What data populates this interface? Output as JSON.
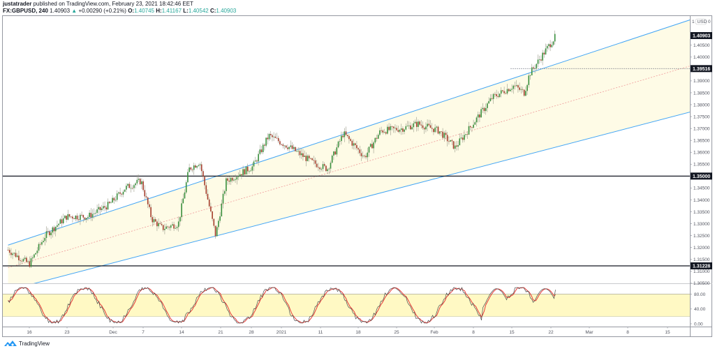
{
  "header": {
    "author": "justatrader",
    "published_text": "published on TradingView.com, February 23, 2021 18:42:46 EET",
    "symbol": "FX:GBPUSD, 240",
    "last": "1.40903",
    "change_icon": "triangle-up-icon",
    "change": "+0.00290 (+0.21%)",
    "ohlc": [
      {
        "label": "O:",
        "value": "1.40745"
      },
      {
        "label": "H:",
        "value": "1.41167"
      },
      {
        "label": "L:",
        "value": "1.40542"
      },
      {
        "label": "C:",
        "value": "1.40903"
      }
    ]
  },
  "price_axis": {
    "currency": "USD",
    "ticks": [
      "1.40500",
      "1.40000",
      "1.39000",
      "1.38500",
      "1.38000",
      "1.37500",
      "1.37000",
      "1.36500",
      "1.36000",
      "1.35500",
      "1.34500",
      "1.34000",
      "1.33500",
      "1.33000",
      "1.32500",
      "1.32000",
      "1.31500",
      "1.31000",
      "1.30500"
    ],
    "labels": [
      {
        "value": "1.40903",
        "kind": "last-price"
      },
      {
        "value": "1.39516",
        "kind": "horizontal-ray"
      },
      {
        "value": "1.35000",
        "kind": "horizontal-line"
      },
      {
        "value": "1.31228",
        "kind": "horizontal-line"
      }
    ]
  },
  "oscillator_axis": {
    "ticks": [
      "80.00",
      "40.00",
      "0.00"
    ]
  },
  "time_axis": {
    "ticks": [
      "16",
      "23",
      "Dec",
      "7",
      "14",
      "21",
      "28",
      "2021",
      "11",
      "18",
      "25",
      "Feb",
      "8",
      "15",
      "22",
      "Mar",
      "8",
      "15"
    ]
  },
  "branding": {
    "logo_icon": "tradingview-logo-icon",
    "name": "TradingView"
  },
  "colors": {
    "up_candle": "#388e3c",
    "down_candle": "#a33b2a",
    "channel_line": "#42a5f5",
    "channel_fill": "#fefbe6",
    "channel_mid": "#ef9a9a",
    "osc_k": "#4a4a4a",
    "osc_d": "#e53935",
    "osc_band": "#fff9c4"
  },
  "chart_data": {
    "type": "candlestick",
    "title": "FX:GBPUSD, 240",
    "xlabel": "",
    "ylabel": "USD",
    "ylim": [
      1.3035,
      1.4165
    ],
    "x_ticks": [
      "16",
      "23",
      "Dec",
      "7",
      "14",
      "21",
      "28",
      "2021",
      "11",
      "18",
      "25",
      "Feb",
      "8",
      "15",
      "22",
      "Mar",
      "8",
      "15"
    ],
    "y_ticks": [
      1.305,
      1.31,
      1.315,
      1.32,
      1.325,
      1.33,
      1.335,
      1.34,
      1.345,
      1.35,
      1.355,
      1.36,
      1.365,
      1.37,
      1.375,
      1.38,
      1.385,
      1.39,
      1.395,
      1.4,
      1.405
    ],
    "approx_close_path": [
      {
        "date": "Nov 12",
        "close": 1.319
      },
      {
        "date": "Nov 16",
        "close": 1.313
      },
      {
        "date": "Nov 19",
        "close": 1.325
      },
      {
        "date": "Nov 23",
        "close": 1.333
      },
      {
        "date": "Nov 27",
        "close": 1.333
      },
      {
        "date": "Dec 1",
        "close": 1.338
      },
      {
        "date": "Dec 4",
        "close": 1.345
      },
      {
        "date": "Dec 7",
        "close": 1.348
      },
      {
        "date": "Dec 9",
        "close": 1.332
      },
      {
        "date": "Dec 11",
        "close": 1.328
      },
      {
        "date": "Dec 14",
        "close": 1.33
      },
      {
        "date": "Dec 16",
        "close": 1.353
      },
      {
        "date": "Dec 18",
        "close": 1.356
      },
      {
        "date": "Dec 21",
        "close": 1.325
      },
      {
        "date": "Dec 23",
        "close": 1.348
      },
      {
        "date": "Dec 28",
        "close": 1.354
      },
      {
        "date": "Dec 31",
        "close": 1.367
      },
      {
        "date": "Jan 4",
        "close": 1.362
      },
      {
        "date": "Jan 8",
        "close": 1.356
      },
      {
        "date": "Jan 11",
        "close": 1.353
      },
      {
        "date": "Jan 14",
        "close": 1.368
      },
      {
        "date": "Jan 18",
        "close": 1.358
      },
      {
        "date": "Jan 21",
        "close": 1.369
      },
      {
        "date": "Jan 25",
        "close": 1.37
      },
      {
        "date": "Jan 28",
        "close": 1.372
      },
      {
        "date": "Feb 1",
        "close": 1.369
      },
      {
        "date": "Feb 4",
        "close": 1.362
      },
      {
        "date": "Feb 8",
        "close": 1.374
      },
      {
        "date": "Feb 11",
        "close": 1.383
      },
      {
        "date": "Feb 15",
        "close": 1.388
      },
      {
        "date": "Feb 17",
        "close": 1.385
      },
      {
        "date": "Feb 18",
        "close": 1.393
      },
      {
        "date": "Feb 22",
        "close": 1.406
      },
      {
        "date": "Feb 23",
        "close": 1.40903
      }
    ],
    "annotations": [
      {
        "type": "horizontal_line",
        "value": 1.35
      },
      {
        "type": "horizontal_line",
        "value": 1.31228
      },
      {
        "type": "horizontal_ray",
        "value": 1.39516,
        "from": "Feb 16"
      },
      {
        "type": "parallel_channel",
        "upper_start": 1.321,
        "upper_end": 1.417,
        "lower_start": 1.302,
        "lower_end": 1.378,
        "start": "Nov 12",
        "end": "Mar 22"
      }
    ],
    "indicator": {
      "name": "Stochastic",
      "bands": [
        80,
        20
      ],
      "ticks": [
        80,
        40,
        0
      ],
      "last_k": 92,
      "last_d": 91
    }
  }
}
